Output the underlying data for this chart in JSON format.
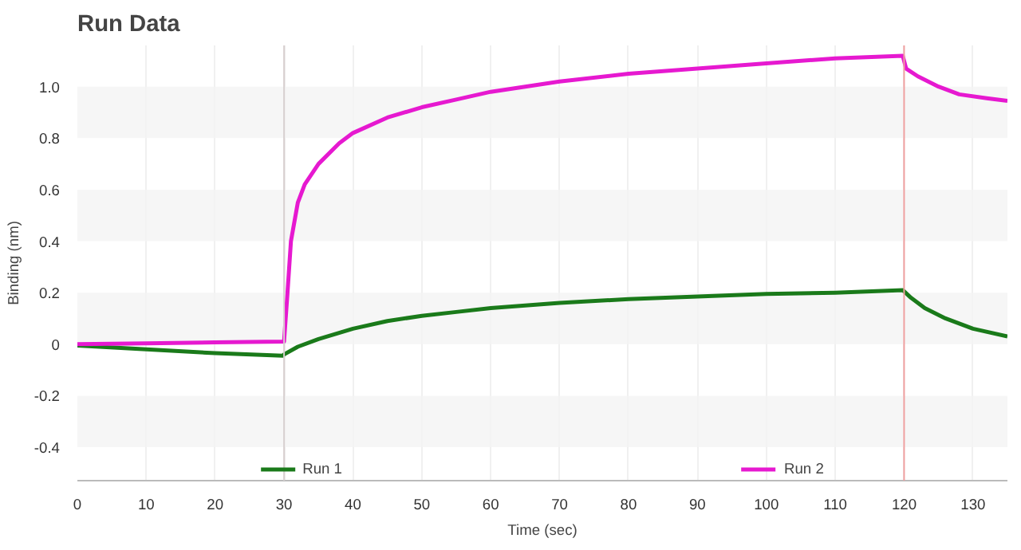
{
  "chart_data": {
    "type": "line",
    "title": "Run Data",
    "xlabel": "Time (sec)",
    "ylabel": "Binding (nm)",
    "xlim": [
      0,
      135
    ],
    "xticks": [
      0,
      10,
      20,
      30,
      40,
      50,
      60,
      70,
      80,
      90,
      100,
      110,
      120,
      130
    ],
    "ylim": [
      -0.53,
      1.16
    ],
    "yticks": [
      {
        "value": -0.4,
        "label": "-0.4"
      },
      {
        "value": -0.2,
        "label": "-0.2"
      },
      0,
      0.2,
      0.4,
      0.6,
      0.8,
      {
        "value": 1.0,
        "label": "1.0"
      }
    ],
    "grid": true,
    "legend": "bottom",
    "marker": "none",
    "line_style": "solid",
    "ref_lines": [
      {
        "axis": "x",
        "value": 30,
        "color": "#d8d0d0"
      },
      {
        "axis": "x",
        "value": 120,
        "color": "#f0a0a0"
      }
    ],
    "series": [
      {
        "name": "Run 1",
        "color": "#1a7a1a",
        "x": [
          0,
          10,
          20,
          29.8,
          30,
          32,
          35,
          40,
          45,
          50,
          55,
          60,
          70,
          80,
          90,
          100,
          110,
          119.8,
          121,
          123,
          126,
          130,
          135
        ],
        "values": [
          -0.005,
          -0.02,
          -0.035,
          -0.045,
          -0.04,
          -0.01,
          0.02,
          0.06,
          0.09,
          0.11,
          0.125,
          0.14,
          0.16,
          0.175,
          0.185,
          0.195,
          0.2,
          0.21,
          0.18,
          0.14,
          0.1,
          0.06,
          0.03
        ]
      },
      {
        "name": "Run 2",
        "color": "#e619d0",
        "x": [
          0,
          10,
          20,
          29.8,
          30,
          30.5,
          31,
          32,
          33,
          35,
          38,
          40,
          45,
          50,
          55,
          60,
          65,
          70,
          80,
          90,
          100,
          110,
          119.8,
          120,
          120.3,
          122,
          125,
          128,
          132,
          135
        ],
        "values": [
          0,
          0.003,
          0.007,
          0.01,
          0.01,
          0.2,
          0.4,
          0.55,
          0.62,
          0.7,
          0.78,
          0.82,
          0.88,
          0.92,
          0.95,
          0.98,
          1.0,
          1.02,
          1.05,
          1.07,
          1.09,
          1.11,
          1.12,
          1.1,
          1.07,
          1.04,
          1.0,
          0.97,
          0.955,
          0.945
        ]
      }
    ]
  }
}
